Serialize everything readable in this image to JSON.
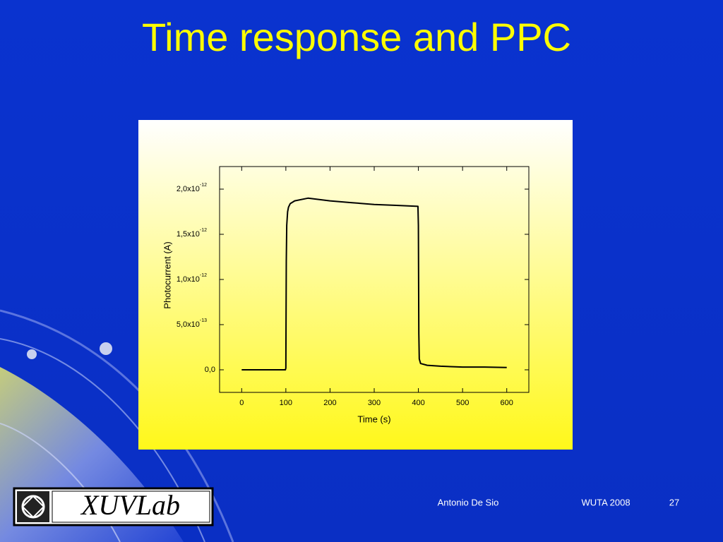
{
  "slide": {
    "title": "Time response and PPC",
    "footer": {
      "author": "Antonio De Sio",
      "event": "WUTA 2008",
      "page": "27"
    },
    "logo": "XUVLab"
  },
  "chart_data": {
    "type": "line",
    "x_label": "Time (s)",
    "y_label": "Photocurrent (A)",
    "color": "#000000",
    "x": [
      0,
      50,
      99,
      100,
      101,
      102,
      104,
      106,
      110,
      120,
      150,
      200,
      250,
      300,
      350,
      399,
      400,
      401,
      402,
      405,
      420,
      450,
      500,
      550,
      600
    ],
    "values": [
      0,
      0,
      0,
      2e-14,
      1.2e-12,
      1.6e-12,
      1.75e-12,
      1.8e-12,
      1.84e-12,
      1.87e-12,
      1.9e-12,
      1.87e-12,
      1.85e-12,
      1.83e-12,
      1.82e-12,
      1.81e-12,
      1.6e-12,
      4e-13,
      1.2e-13,
      7e-14,
      5e-14,
      4e-14,
      3e-14,
      3e-14,
      2.5e-14
    ],
    "xlim": [
      -50,
      650
    ],
    "xticks": [
      0,
      100,
      200,
      300,
      400,
      500,
      600
    ],
    "ylim": [
      -2.5e-13,
      2.25e-12
    ],
    "yticks": [
      {
        "value": 0,
        "label": "0,0"
      },
      {
        "value": 5e-13,
        "label": "5,0x10",
        "exponent": "-13"
      },
      {
        "value": 1e-12,
        "label": "1,0x10",
        "exponent": "-12"
      },
      {
        "value": 1.5e-12,
        "label": "1,5x10",
        "exponent": "-12"
      },
      {
        "value": 2e-12,
        "label": "2,0x10",
        "exponent": "-12"
      }
    ]
  }
}
